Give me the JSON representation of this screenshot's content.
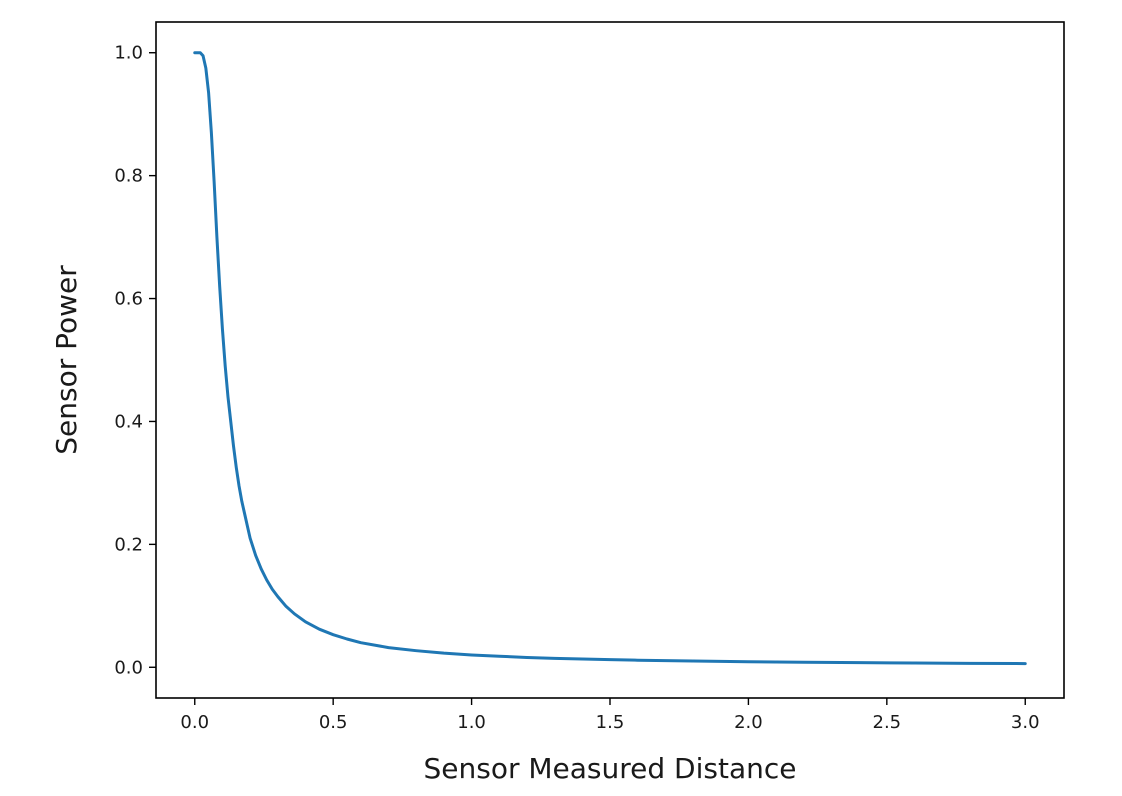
{
  "chart_data": {
    "type": "line",
    "title": "",
    "xlabel": "Sensor Measured Distance",
    "ylabel": "Sensor Power",
    "xlim": [
      -0.14,
      3.14
    ],
    "ylim": [
      -0.05,
      1.05
    ],
    "x_ticks": [
      0.0,
      0.5,
      1.0,
      1.5,
      2.0,
      2.5,
      3.0
    ],
    "x_tick_labels": [
      "0.0",
      "0.5",
      "1.0",
      "1.5",
      "2.0",
      "2.5",
      "3.0"
    ],
    "y_ticks": [
      0.0,
      0.2,
      0.4,
      0.6,
      0.8,
      1.0
    ],
    "y_tick_labels": [
      "0.0",
      "0.2",
      "0.4",
      "0.6",
      "0.8",
      "1.0"
    ],
    "grid": false,
    "legend": "none",
    "series": [
      {
        "color": "#1f77b4",
        "x": [
          0.0,
          0.01,
          0.02,
          0.03,
          0.04,
          0.05,
          0.06,
          0.07,
          0.08,
          0.09,
          0.1,
          0.11,
          0.12,
          0.13,
          0.14,
          0.15,
          0.16,
          0.17,
          0.18,
          0.19,
          0.2,
          0.22,
          0.24,
          0.26,
          0.28,
          0.3,
          0.33,
          0.36,
          0.4,
          0.45,
          0.5,
          0.55,
          0.6,
          0.7,
          0.8,
          0.9,
          1.0,
          1.1,
          1.2,
          1.3,
          1.4,
          1.5,
          1.6,
          1.7,
          1.8,
          1.9,
          2.0,
          2.2,
          2.4,
          2.6,
          2.8,
          3.0
        ],
        "y": [
          1.0,
          1.0,
          1.0,
          0.995,
          0.975,
          0.935,
          0.87,
          0.79,
          0.7,
          0.62,
          0.55,
          0.49,
          0.44,
          0.4,
          0.36,
          0.325,
          0.295,
          0.27,
          0.25,
          0.23,
          0.21,
          0.182,
          0.16,
          0.142,
          0.127,
          0.115,
          0.099,
          0.087,
          0.074,
          0.062,
          0.053,
          0.046,
          0.04,
          0.032,
          0.027,
          0.023,
          0.02,
          0.018,
          0.016,
          0.0145,
          0.0135,
          0.0125,
          0.0115,
          0.0108,
          0.0102,
          0.0096,
          0.009,
          0.0082,
          0.0075,
          0.0069,
          0.0064,
          0.006
        ]
      }
    ]
  }
}
